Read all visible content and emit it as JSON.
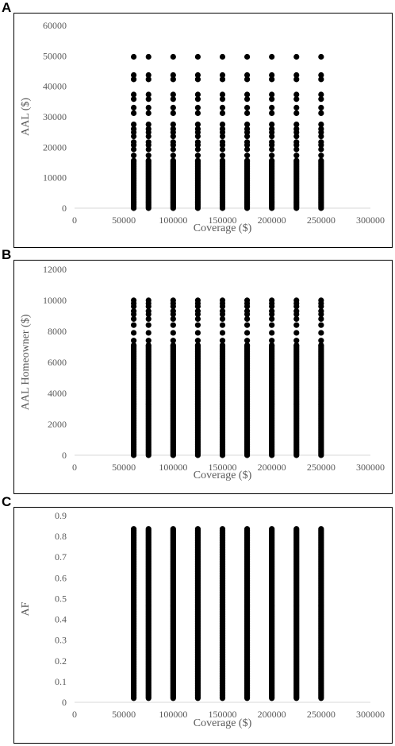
{
  "panels": [
    {
      "letter": "A"
    },
    {
      "letter": "B"
    },
    {
      "letter": "C"
    }
  ],
  "chart_data": [
    {
      "type": "scatter",
      "panel": "A",
      "xlabel": "Coverage ($)",
      "ylabel": "AAL ($)",
      "xlim": [
        0,
        300000
      ],
      "ylim": [
        0,
        60000
      ],
      "xticks": [
        0,
        50000,
        100000,
        150000,
        200000,
        250000,
        300000
      ],
      "yticks": [
        0,
        10000,
        20000,
        30000,
        40000,
        50000,
        60000
      ],
      "grid": false,
      "x": [
        60000,
        75000,
        100000,
        125000,
        150000,
        175000,
        200000,
        225000,
        250000
      ],
      "y_range": [
        0,
        49700
      ],
      "y_sparse_points": [
        49700,
        43700,
        42300,
        37300,
        35800,
        33000,
        31200,
        27500,
        26000,
        24900,
        23600,
        21700,
        20700,
        19300,
        17300,
        15600
      ]
    },
    {
      "type": "scatter",
      "panel": "B",
      "xlabel": "Coverage ($)",
      "ylabel": "AAL Homeowner ($)",
      "xlim": [
        0,
        300000
      ],
      "ylim": [
        0,
        12000
      ],
      "xticks": [
        0,
        50000,
        100000,
        150000,
        200000,
        250000,
        300000
      ],
      "yticks": [
        0,
        2000,
        4000,
        6000,
        8000,
        10000,
        12000
      ],
      "grid": false,
      "x": [
        60000,
        75000,
        100000,
        125000,
        150000,
        175000,
        200000,
        225000,
        250000
      ],
      "y_range": [
        0,
        10000
      ],
      "y_sparse_points": [
        10000,
        9800,
        9600,
        9300,
        9100,
        8800,
        8400,
        7900,
        7400,
        7100
      ]
    },
    {
      "type": "scatter",
      "panel": "C",
      "xlabel": "Coverage ($)",
      "ylabel": "AF",
      "xlim": [
        0,
        300000
      ],
      "ylim": [
        0,
        0.9
      ],
      "xticks": [
        0,
        50000,
        100000,
        150000,
        200000,
        250000,
        300000
      ],
      "yticks": [
        0,
        0.1,
        0.2,
        0.3,
        0.4,
        0.5,
        0.6,
        0.7,
        0.8,
        0.9
      ],
      "grid": false,
      "x": [
        60000,
        75000,
        100000,
        125000,
        150000,
        175000,
        200000,
        225000,
        250000
      ],
      "y_range": [
        0.02,
        0.84
      ],
      "y_sparse_points": []
    }
  ]
}
